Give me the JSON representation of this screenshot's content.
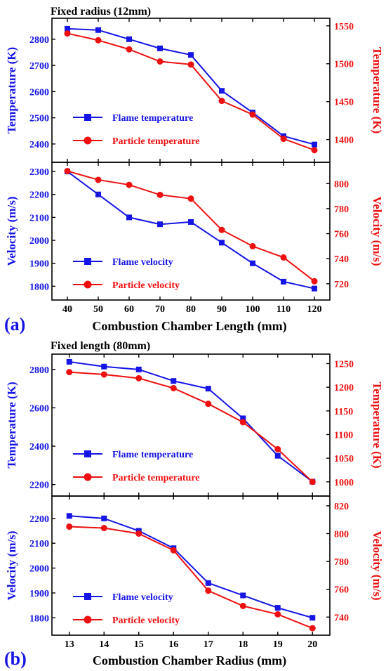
{
  "colors": {
    "blue": "#1515e6",
    "red": "#ee1010",
    "black": "#000000"
  },
  "panels": [
    {
      "id": "a",
      "letter": "(a)",
      "title": "Fixed radius (12mm)",
      "xlabel": "Combustion Chamber Length (mm)",
      "x_ticks": [
        "40",
        "50",
        "60",
        "70",
        "80",
        "90",
        "100",
        "110",
        "120"
      ]
    },
    {
      "id": "b",
      "letter": "(b)",
      "title": "Fixed length (80mm)",
      "xlabel": "Combustion Chamber Radius (mm)",
      "x_ticks": [
        "13",
        "14",
        "15",
        "16",
        "17",
        "18",
        "19",
        "20"
      ]
    }
  ],
  "chart_data": [
    {
      "type": "line",
      "panel": "a",
      "subplot": "temperature",
      "x": [
        40,
        50,
        60,
        70,
        80,
        90,
        100,
        110,
        120
      ],
      "xlim": [
        35,
        125
      ],
      "ylabel": "Temperature (K)",
      "y2label": "Temperature (K)",
      "ylim": [
        2330,
        2880
      ],
      "yticks": [
        2400,
        2500,
        2600,
        2700,
        2800
      ],
      "y2lim": [
        1370,
        1560
      ],
      "y2ticks": [
        1400,
        1450,
        1500,
        1550
      ],
      "legend_position": "bottom-left",
      "series": [
        {
          "name": "Flame temperature",
          "axis": "left",
          "marker": "square",
          "values": [
            2840,
            2835,
            2800,
            2765,
            2740,
            2603,
            2520,
            2430,
            2398
          ]
        },
        {
          "name": "Particle temperature",
          "axis": "right",
          "marker": "circle",
          "values": [
            1540,
            1531,
            1519,
            1503,
            1499,
            1451,
            1433,
            1401,
            1386
          ]
        }
      ]
    },
    {
      "type": "line",
      "panel": "a",
      "subplot": "velocity",
      "x": [
        40,
        50,
        60,
        70,
        80,
        90,
        100,
        110,
        120
      ],
      "xlim": [
        35,
        125
      ],
      "ylabel": "Velocity (m/s)",
      "y2label": "Velocity (m/s)",
      "ylim": [
        1740,
        2340
      ],
      "yticks": [
        1800,
        1900,
        2000,
        2100,
        2200,
        2300
      ],
      "y2lim": [
        707,
        817
      ],
      "y2ticks": [
        720,
        740,
        760,
        780,
        800
      ],
      "legend_position": "bottom-left",
      "series": [
        {
          "name": "Flame velocity",
          "axis": "left",
          "marker": "square",
          "values": [
            2300,
            2200,
            2100,
            2070,
            2080,
            1990,
            1900,
            1820,
            1790
          ]
        },
        {
          "name": "Particle velocity",
          "axis": "right",
          "marker": "circle",
          "values": [
            810,
            803,
            799,
            791,
            788,
            763,
            750,
            741,
            722
          ]
        }
      ]
    },
    {
      "type": "line",
      "panel": "b",
      "subplot": "temperature",
      "x": [
        13,
        14,
        15,
        16,
        17,
        18,
        19,
        20
      ],
      "xlim": [
        12.5,
        20.5
      ],
      "ylabel": "Temperature (K)",
      "y2label": "Temperature (K)",
      "ylim": [
        2140,
        2880
      ],
      "yticks": [
        2200,
        2400,
        2600,
        2800
      ],
      "y2lim": [
        970,
        1270
      ],
      "y2ticks": [
        1000,
        1050,
        1100,
        1150,
        1200,
        1250
      ],
      "legend_position": "bottom-left",
      "series": [
        {
          "name": "Flame temperature",
          "axis": "left",
          "marker": "square",
          "values": [
            2840,
            2815,
            2800,
            2740,
            2700,
            2545,
            2350,
            2215
          ]
        },
        {
          "name": "Particle temperature",
          "axis": "right",
          "marker": "circle",
          "values": [
            1232,
            1227,
            1219,
            1198,
            1165,
            1126,
            1069,
            1000
          ]
        }
      ]
    },
    {
      "type": "line",
      "panel": "b",
      "subplot": "velocity",
      "x": [
        13,
        14,
        15,
        16,
        17,
        18,
        19,
        20
      ],
      "xlim": [
        12.5,
        20.5
      ],
      "ylabel": "Velocity (m/s)",
      "y2label": "Velocity (m/s)",
      "ylim": [
        1730,
        2290
      ],
      "yticks": [
        1800,
        1900,
        2000,
        2100,
        2200
      ],
      "y2lim": [
        727,
        827
      ],
      "y2ticks": [
        740,
        760,
        780,
        800,
        820
      ],
      "legend_position": "bottom-left",
      "series": [
        {
          "name": "Flame velocity",
          "axis": "left",
          "marker": "square",
          "values": [
            2210,
            2200,
            2150,
            2080,
            1940,
            1890,
            1840,
            1800
          ]
        },
        {
          "name": "Particle velocity",
          "axis": "right",
          "marker": "circle",
          "values": [
            805,
            804,
            800,
            788,
            759,
            748,
            742,
            732
          ]
        }
      ]
    }
  ]
}
